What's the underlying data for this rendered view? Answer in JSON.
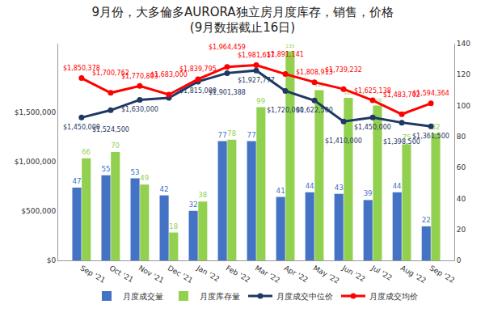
{
  "chart_data": {
    "type": "bar",
    "title": "9月份，大多倫多AURORA独立房月度库存，销售，价格",
    "subtitle": "(9月数据截止16日)",
    "categories": [
      "Sep '21",
      "Oct '21",
      "Nov '21",
      "Dec '21",
      "Jan '22",
      "Feb '22",
      "Mar '22",
      "Apr '22",
      "May '22",
      "Jun '22",
      "Jul '22",
      "Aug '22",
      "Sep '22"
    ],
    "series": [
      {
        "name": "月度成交量",
        "type": "bar",
        "color": "#4472C4",
        "axis": "y2",
        "values": [
          47,
          55,
          53,
          42,
          32,
          77,
          77,
          41,
          44,
          43,
          39,
          44,
          22
        ]
      },
      {
        "name": "月度库存量",
        "type": "bar",
        "color": "#92D050",
        "axis": "y2",
        "values": [
          66,
          70,
          49,
          18,
          38,
          78,
          99,
          135,
          110,
          105,
          100,
          75,
          82
        ]
      },
      {
        "name": "月度成交中位价",
        "type": "line",
        "color": "#1F3864",
        "marker": "circle",
        "values": [
          1450000,
          1524500,
          1630000,
          1650000,
          1815000,
          1901388,
          1927777,
          1720000,
          1622500,
          1410000,
          1450000,
          1398500,
          1361500
        ],
        "value_labels": [
          "$1,450,000",
          "$1,524,500",
          "$1,630,000",
          null,
          "$1,815,000",
          "$1,901,388",
          "$1,927,777",
          "$1,720,000",
          "$1,622,500",
          "$1,410,000",
          "$1,450,000",
          "$1,398,500",
          "$1,361,500"
        ]
      },
      {
        "name": "月度成交均价",
        "type": "line",
        "color": "#FF0000",
        "marker": "circle",
        "values": [
          1850378,
          1700762,
          1770803,
          1683000,
          1839795,
          1964459,
          1981617,
          1891141,
          1808913,
          1739232,
          1625138,
          1483702,
          1594364
        ],
        "value_labels": [
          "$1,850,378",
          "$1,700,762",
          "$1,770,803",
          "$1,683,000",
          "$1,839,795",
          "$1,964,459",
          "$1,981,617",
          "$1,891,141",
          "$1,808,913",
          "$1,739,232",
          "$1,625,138",
          "$1,483,702",
          "$1,594,364"
        ]
      }
    ],
    "ylim": [
      0,
      2200000
    ],
    "yticks": [
      {
        "value": 0,
        "label": "$0"
      },
      {
        "value": 500000,
        "label": "$500,000"
      },
      {
        "value": 1000000,
        "label": "$1,000,000"
      },
      {
        "value": 1500000,
        "label": "$1,500,000"
      }
    ],
    "y2lim": [
      0,
      140
    ],
    "y2ticks": [
      0,
      20,
      40,
      60,
      80,
      100,
      120,
      140
    ],
    "data_labels": true,
    "grid": false,
    "legend": "bottom"
  }
}
